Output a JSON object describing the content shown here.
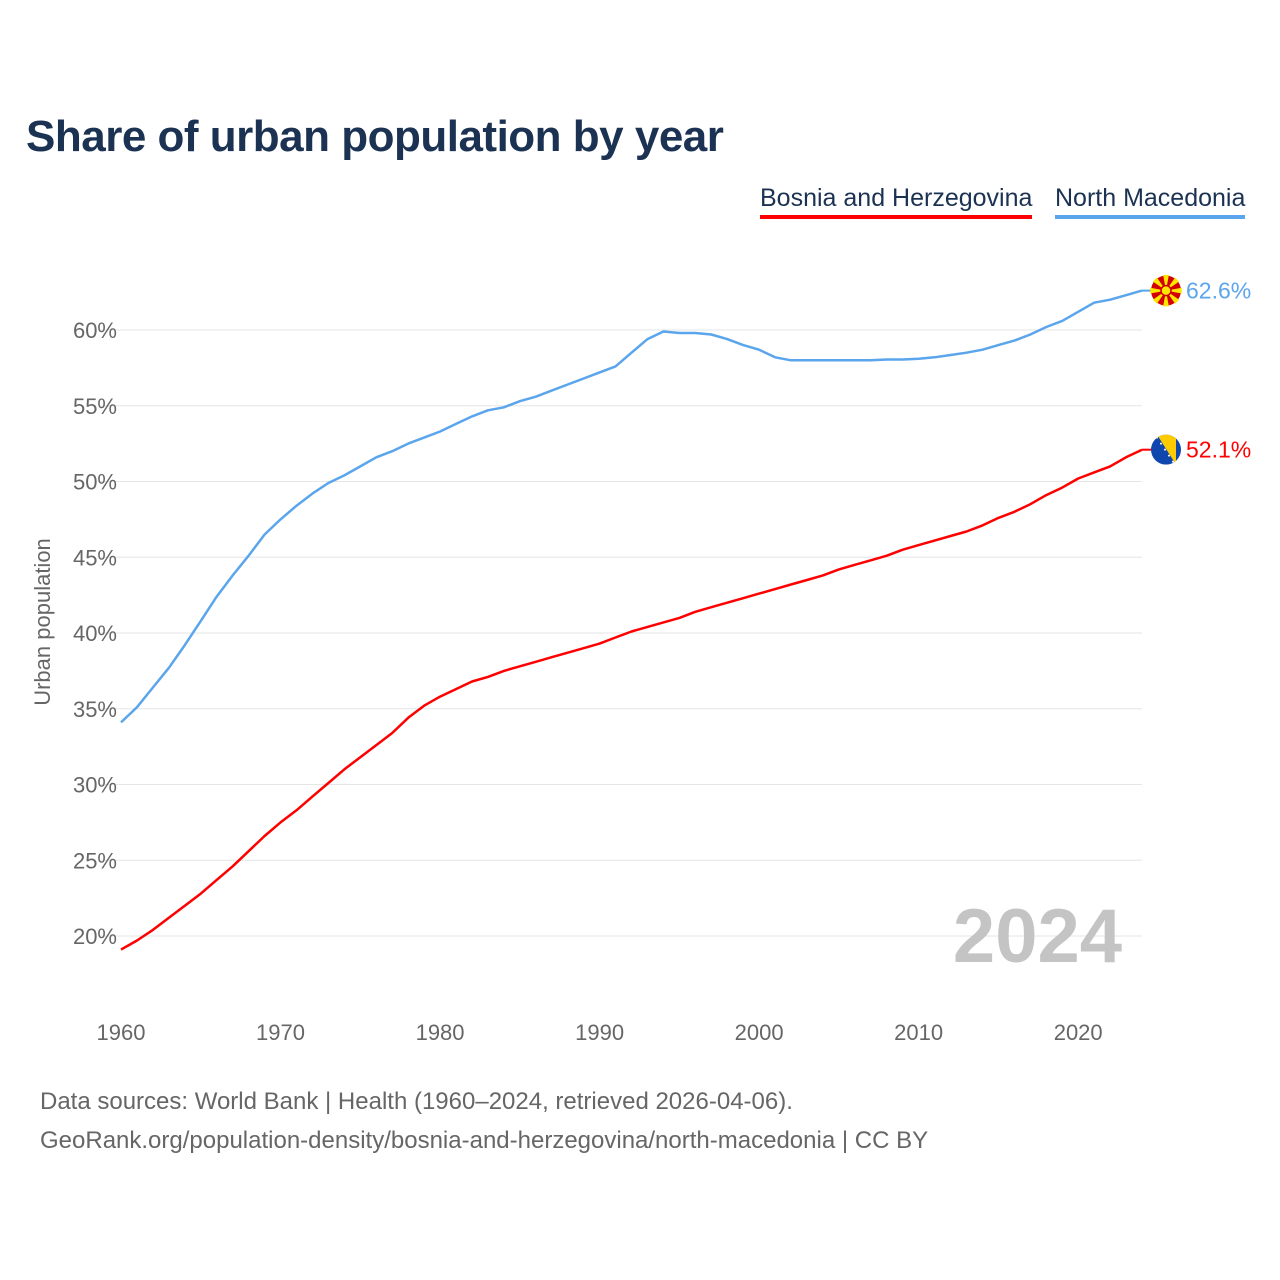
{
  "chart_data": {
    "type": "line",
    "title": "Share of urban population by year",
    "xlabel": "",
    "ylabel": "Urban population",
    "xlim": [
      1960,
      2024
    ],
    "ylim": [
      16.7,
      63
    ],
    "grid": true,
    "legend_position": "top-right",
    "x_ticks": [
      "1960",
      "1970",
      "1980",
      "1990",
      "2000",
      "2010",
      "2020"
    ],
    "y_ticks": [
      "20%",
      "25%",
      "30%",
      "35%",
      "40%",
      "45%",
      "50%",
      "55%",
      "60%"
    ],
    "year_watermark": "2024",
    "x": [
      1960,
      1961,
      1962,
      1963,
      1964,
      1965,
      1966,
      1967,
      1968,
      1969,
      1970,
      1971,
      1972,
      1973,
      1974,
      1975,
      1976,
      1977,
      1978,
      1979,
      1980,
      1981,
      1982,
      1983,
      1984,
      1985,
      1986,
      1987,
      1988,
      1989,
      1990,
      1991,
      1992,
      1993,
      1994,
      1995,
      1996,
      1997,
      1998,
      1999,
      2000,
      2001,
      2002,
      2003,
      2004,
      2005,
      2006,
      2007,
      2008,
      2009,
      2010,
      2011,
      2012,
      2013,
      2014,
      2015,
      2016,
      2017,
      2018,
      2019,
      2020,
      2021,
      2022,
      2023,
      2024
    ],
    "series": [
      {
        "name": "Bosnia and Herzegovina",
        "color": "#ff0000",
        "end_label": "52.1%",
        "flag": "bosnia-flag",
        "values": [
          19.1,
          19.7,
          20.4,
          21.2,
          22.0,
          22.8,
          23.7,
          24.6,
          25.6,
          26.6,
          27.5,
          28.3,
          29.2,
          30.1,
          31.0,
          31.8,
          32.6,
          33.4,
          34.4,
          35.2,
          35.8,
          36.3,
          36.8,
          37.1,
          37.5,
          37.8,
          38.1,
          38.4,
          38.7,
          39.0,
          39.3,
          39.7,
          40.1,
          40.4,
          40.7,
          41.0,
          41.4,
          41.7,
          42.0,
          42.3,
          42.6,
          42.9,
          43.2,
          43.5,
          43.8,
          44.2,
          44.5,
          44.8,
          45.1,
          45.5,
          45.8,
          46.1,
          46.4,
          46.7,
          47.1,
          47.6,
          48.0,
          48.5,
          49.1,
          49.6,
          50.2,
          50.6,
          51.0,
          51.6,
          52.1
        ]
      },
      {
        "name": "North Macedonia",
        "color": "#5aa5ec",
        "end_label": "62.6%",
        "flag": "north-macedonia-flag",
        "values": [
          34.1,
          35.1,
          36.4,
          37.7,
          39.2,
          40.8,
          42.4,
          43.8,
          45.1,
          46.5,
          47.5,
          48.4,
          49.2,
          49.9,
          50.4,
          51.0,
          51.6,
          52.0,
          52.5,
          52.9,
          53.3,
          53.8,
          54.3,
          54.7,
          54.9,
          55.3,
          55.6,
          56.0,
          56.4,
          56.8,
          57.2,
          57.6,
          58.5,
          59.4,
          59.9,
          59.8,
          59.8,
          59.7,
          59.4,
          59.0,
          58.7,
          58.2,
          58.0,
          58.0,
          58.0,
          58.0,
          58.0,
          58.0,
          58.05,
          58.05,
          58.1,
          58.2,
          58.35,
          58.5,
          58.7,
          59.0,
          59.3,
          59.7,
          60.2,
          60.6,
          61.2,
          61.8,
          62.0,
          62.3,
          62.6
        ]
      }
    ]
  },
  "footer": {
    "line1": "Data sources: World Bank | Health (1960–2024, retrieved 2026-04-06).",
    "line2": "GeoRank.org/population-density/bosnia-and-herzegovina/north-macedonia | CC BY"
  }
}
